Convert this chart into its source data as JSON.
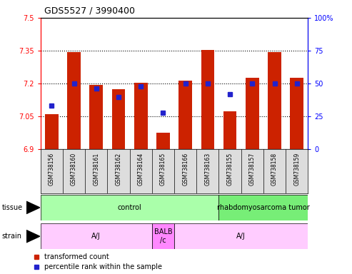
{
  "title": "GDS5527 / 3990400",
  "samples": [
    "GSM738156",
    "GSM738160",
    "GSM738161",
    "GSM738162",
    "GSM738164",
    "GSM738165",
    "GSM738166",
    "GSM738163",
    "GSM738155",
    "GSM738157",
    "GSM738158",
    "GSM738159"
  ],
  "transformed_count": [
    7.06,
    7.345,
    7.195,
    7.175,
    7.205,
    6.975,
    7.215,
    7.355,
    7.075,
    7.225,
    7.345,
    7.225
  ],
  "percentile_rank": [
    33,
    50,
    46,
    40,
    48,
    28,
    50,
    50,
    42,
    50,
    50,
    50
  ],
  "ylim_left": [
    6.9,
    7.5
  ],
  "ylim_right": [
    0,
    100
  ],
  "yticks_left": [
    6.9,
    7.05,
    7.2,
    7.35,
    7.5
  ],
  "yticks_right": [
    0,
    25,
    50,
    75,
    100
  ],
  "bar_color": "#cc2200",
  "dot_color": "#2222cc",
  "bar_bottom": 6.9,
  "tissue_labels": [
    {
      "text": "control",
      "start": 0,
      "end": 7,
      "color": "#aaffaa"
    },
    {
      "text": "rhabdomyosarcoma tumor",
      "start": 8,
      "end": 11,
      "color": "#77ee77"
    }
  ],
  "strain_labels": [
    {
      "text": "A/J",
      "start": 0,
      "end": 4,
      "color": "#ffccff"
    },
    {
      "text": "BALB\n/c",
      "start": 5,
      "end": 5,
      "color": "#ff88ff"
    },
    {
      "text": "A/J",
      "start": 6,
      "end": 11,
      "color": "#ffccff"
    }
  ],
  "legend_items": [
    {
      "color": "#cc2200",
      "label": "transformed count"
    },
    {
      "color": "#2222cc",
      "label": "percentile rank within the sample"
    }
  ],
  "hlines": [
    7.05,
    7.2,
    7.35
  ],
  "bg_color": "#ffffff"
}
